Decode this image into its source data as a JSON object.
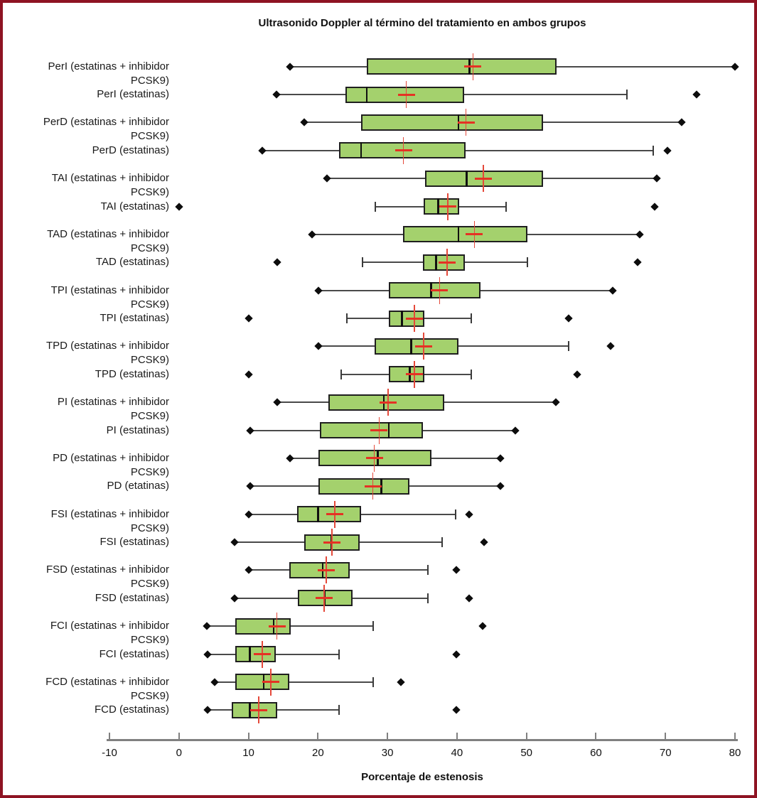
{
  "chart_data": {
    "type": "boxplot",
    "orientation": "horizontal",
    "title": "Ultrasonido Doppler al término del tratamiento en ambos grupos",
    "xlabel": "Porcentaje de estenosis",
    "xlim": [
      -10,
      80
    ],
    "x_ticks": [
      -10,
      0,
      10,
      20,
      30,
      40,
      50,
      60,
      70,
      80
    ],
    "grid": false,
    "colors": {
      "box_fill": "#a4d16d",
      "box_border": "#1f1f1f",
      "whisker": "#4a4a4a",
      "median": "#111111",
      "mean_marker": "#e53224",
      "outlier": "#0d0d0d",
      "axis": "#808080",
      "frame_border": "#8e1323"
    },
    "series": [
      {
        "label": "PerI  (estatinas + inhibidor",
        "label2": "PCSK9)",
        "lo": 16,
        "q1": 27,
        "med": 41.8,
        "q3": 54.3,
        "hi": 80,
        "mean": 42.3,
        "cap_lo": false,
        "cap_hi": false,
        "outliers": [
          16,
          80
        ]
      },
      {
        "label": "PerI (estatinas)",
        "label2": "",
        "lo": 14,
        "q1": 24,
        "med": 27,
        "q3": 41,
        "hi": 64.5,
        "mean": 32.7,
        "cap_lo": false,
        "cap_hi": true,
        "outliers": [
          14,
          74.5
        ]
      },
      {
        "label": "PerD  (estatinas + inhibidor",
        "label2": "PCSK9)",
        "lo": 18,
        "q1": 26.2,
        "med": 40.2,
        "q3": 52.4,
        "hi": 72.3,
        "mean": 41.3,
        "cap_lo": false,
        "cap_hi": false,
        "outliers": [
          18,
          72.3
        ]
      },
      {
        "label": "PerD  (estatinas)",
        "label2": "",
        "lo": 12,
        "q1": 23,
        "med": 26.2,
        "q3": 41.2,
        "hi": 68.2,
        "mean": 32.3,
        "cap_lo": false,
        "cap_hi": true,
        "outliers": [
          12,
          70.3
        ]
      },
      {
        "label": "TAI  (estatinas + inhibidor",
        "label2": "PCSK9)",
        "lo": 21.3,
        "q1": 35.4,
        "med": 41.4,
        "q3": 52.4,
        "hi": 68.7,
        "mean": 43.8,
        "cap_lo": false,
        "cap_hi": false,
        "outliers": [
          21.3,
          68.7
        ]
      },
      {
        "label": "TAI  (estatinas)",
        "label2": "",
        "lo": 28.3,
        "q1": 35.2,
        "med": 37.3,
        "q3": 40.3,
        "hi": 47.1,
        "mean": 38.7,
        "cap_lo": true,
        "cap_hi": true,
        "outliers": [
          0,
          68.4
        ]
      },
      {
        "label": "TAD  (estatinas + inhibidor",
        "label2": "PCSK9)",
        "lo": 19.1,
        "q1": 32.2,
        "med": 40.2,
        "q3": 50.1,
        "hi": 66.3,
        "mean": 42.5,
        "cap_lo": false,
        "cap_hi": false,
        "outliers": [
          19.1,
          66.3
        ]
      },
      {
        "label": "TAD  (estatinas)",
        "label2": "",
        "lo": 26.4,
        "q1": 35.1,
        "med": 37,
        "q3": 41.1,
        "hi": 50.1,
        "mean": 38.6,
        "cap_lo": true,
        "cap_hi": true,
        "outliers": [
          14.1,
          66
        ]
      },
      {
        "label": "TPI  (estatinas + inhibidor",
        "label2": "PCSK9)",
        "lo": 20.1,
        "q1": 30.2,
        "med": 36.3,
        "q3": 43.4,
        "hi": 62.4,
        "mean": 37.5,
        "cap_lo": false,
        "cap_hi": false,
        "outliers": [
          20.1,
          62.4
        ]
      },
      {
        "label": "TPI (estatinas)",
        "label2": "",
        "lo": 24.2,
        "q1": 30.2,
        "med": 32.1,
        "q3": 35.3,
        "hi": 42.1,
        "mean": 33.9,
        "cap_lo": true,
        "cap_hi": true,
        "outliers": [
          10,
          56.1
        ]
      },
      {
        "label": "TPD  (estatinas + inhibidor",
        "label2": "PCSK9)",
        "lo": 20.1,
        "q1": 28.1,
        "med": 33.4,
        "q3": 40.2,
        "hi": 56.1,
        "mean": 35.2,
        "cap_lo": false,
        "cap_hi": true,
        "outliers": [
          20.1,
          62.1
        ]
      },
      {
        "label": "TPD  (estatinas)",
        "label2": "",
        "lo": 23.3,
        "q1": 30.2,
        "med": 33.2,
        "q3": 35.3,
        "hi": 42.1,
        "mean": 33.9,
        "cap_lo": true,
        "cap_hi": true,
        "outliers": [
          10,
          57.3
        ]
      },
      {
        "label": "PI (estatinas + inhibidor",
        "label2": "PCSK9)",
        "lo": 14.1,
        "q1": 21.5,
        "med": 29.5,
        "q3": 38.2,
        "hi": 54.2,
        "mean": 30.1,
        "cap_lo": false,
        "cap_hi": false,
        "outliers": [
          14.1,
          54.2
        ]
      },
      {
        "label": "PI (estatinas)",
        "label2": "",
        "lo": 10.2,
        "q1": 20.3,
        "med": 30.2,
        "q3": 35.1,
        "hi": 48.4,
        "mean": 28.8,
        "cap_lo": false,
        "cap_hi": false,
        "outliers": [
          10.2,
          48.4
        ]
      },
      {
        "label": "PD  (estatinas + inhibidor",
        "label2": "PCSK9)",
        "lo": 16,
        "q1": 20.1,
        "med": 28.6,
        "q3": 36.3,
        "hi": 46.2,
        "mean": 28.1,
        "cap_lo": false,
        "cap_hi": false,
        "outliers": [
          16,
          46.2
        ]
      },
      {
        "label": "PD  (etatinas)",
        "label2": "",
        "lo": 10.2,
        "q1": 20.1,
        "med": 29.1,
        "q3": 33.2,
        "hi": 46.2,
        "mean": 27.9,
        "cap_lo": false,
        "cap_hi": false,
        "outliers": [
          10.2,
          46.2
        ]
      },
      {
        "label": "FSI (estatinas + inhibidor",
        "label2": "PCSK9)",
        "lo": 10,
        "q1": 17,
        "med": 20,
        "q3": 26.2,
        "hi": 39.8,
        "mean": 22.4,
        "cap_lo": false,
        "cap_hi": true,
        "outliers": [
          10,
          41.8
        ]
      },
      {
        "label": "FSI (estatinas)",
        "label2": "",
        "lo": 8,
        "q1": 18,
        "med": 21.9,
        "q3": 26,
        "hi": 37.9,
        "mean": 22,
        "cap_lo": false,
        "cap_hi": true,
        "outliers": [
          8,
          43.9
        ]
      },
      {
        "label": "FSD (estatinas + inhibidor",
        "label2": "PCSK9)",
        "lo": 10,
        "q1": 15.9,
        "med": 20.7,
        "q3": 24.6,
        "hi": 35.8,
        "mean": 21.2,
        "cap_lo": false,
        "cap_hi": true,
        "outliers": [
          10,
          39.9
        ]
      },
      {
        "label": "FSD (estatinas)",
        "label2": "",
        "lo": 8,
        "q1": 17.1,
        "med": 21,
        "q3": 25,
        "hi": 35.8,
        "mean": 20.9,
        "cap_lo": false,
        "cap_hi": true,
        "outliers": [
          8,
          41.8
        ]
      },
      {
        "label": "FCI (estatinas + inhibidor",
        "label2": "PCSK9)",
        "lo": 4,
        "q1": 8.1,
        "med": 13.6,
        "q3": 16.1,
        "hi": 27.9,
        "mean": 14.1,
        "cap_lo": false,
        "cap_hi": true,
        "outliers": [
          4,
          43.7
        ]
      },
      {
        "label": "FCI (estatinas)",
        "label2": "",
        "lo": 4.1,
        "q1": 8.1,
        "med": 10.2,
        "q3": 13.9,
        "hi": 23,
        "mean": 12,
        "cap_lo": false,
        "cap_hi": true,
        "outliers": [
          4.1,
          39.9
        ]
      },
      {
        "label": "FCD (estatinas + inhibidor",
        "label2": "PCSK9)",
        "lo": 5.1,
        "q1": 8.1,
        "med": 12.2,
        "q3": 15.9,
        "hi": 27.9,
        "mean": 13.2,
        "cap_lo": false,
        "cap_hi": true,
        "outliers": [
          5.1,
          31.9
        ]
      },
      {
        "label": "FCD (estatinas)",
        "label2": "",
        "lo": 4.1,
        "q1": 7.6,
        "med": 10.2,
        "q3": 14.1,
        "hi": 23,
        "mean": 11.5,
        "cap_lo": false,
        "cap_hi": true,
        "outliers": [
          4.1,
          39.9
        ]
      }
    ]
  }
}
